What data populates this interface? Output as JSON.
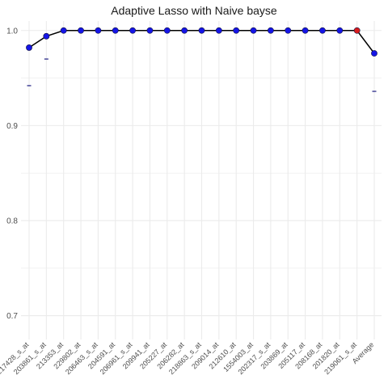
{
  "chart_data": {
    "type": "line",
    "title": "Adaptive Lasso with Naive bayse",
    "xlabel": "",
    "ylabel": "",
    "ylim": [
      0.675,
      1.01
    ],
    "yticks": [
      0.7,
      0.8,
      0.9,
      1.0
    ],
    "ytick_labels": [
      "0.7",
      "0.8",
      "0.9",
      "1.0"
    ],
    "grid": true,
    "categories": [
      "217428_s_at",
      "203861_s_at",
      "213353_at",
      "229802_at",
      "206463_s_at",
      "204591_at",
      "206961_s_at",
      "209941_at",
      "205227_at",
      "206282_at",
      "218863_s_at",
      "209014_at",
      "212610_at",
      "1554003_at",
      "202317_s_at",
      "203869_at",
      "205117_at",
      "208168_at",
      "201820_at",
      "219061_s_at",
      "Average"
    ],
    "series": [
      {
        "values": [
          0.982,
          0.994,
          1.0,
          1.0,
          1.0,
          1.0,
          1.0,
          1.0,
          1.0,
          1.0,
          1.0,
          1.0,
          1.0,
          1.0,
          1.0,
          1.0,
          1.0,
          1.0,
          1.0,
          1.0,
          0.976
        ],
        "lower": [
          0.942,
          0.97,
          null,
          null,
          null,
          null,
          null,
          null,
          null,
          null,
          null,
          null,
          null,
          null,
          null,
          null,
          null,
          null,
          null,
          null,
          0.936
        ],
        "highlight_index": 19
      }
    ],
    "colors": {
      "point": "#1515e6",
      "highlight": "#d91c1c",
      "line": "#000000",
      "grid": "#ebebeb",
      "tick_text": "#4d4d4d"
    }
  }
}
